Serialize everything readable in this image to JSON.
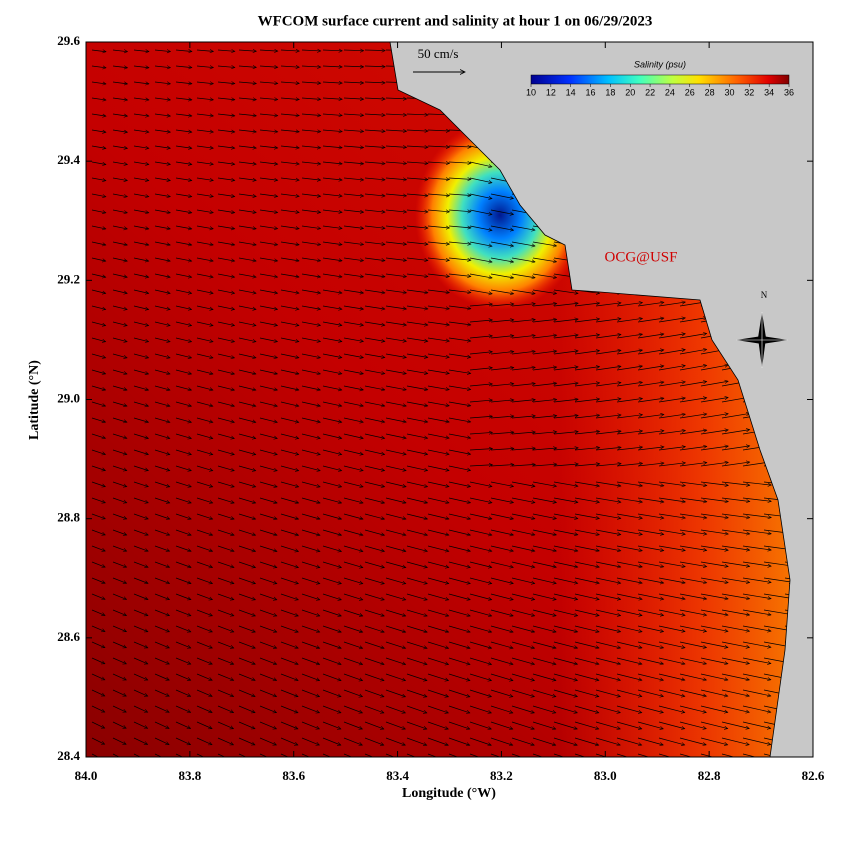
{
  "chart_data": {
    "type": "vector-field",
    "title": "WFCOM surface current and salinity at hour 1 on 06/29/2023",
    "x_label": "Longitude (°W)",
    "y_label": "Latitude (°N)",
    "xlim": [
      84.0,
      82.6
    ],
    "ylim": [
      28.4,
      29.6
    ],
    "xticks": [
      {
        "value": 84,
        "label": "84.0"
      },
      {
        "value": 83.8,
        "label": "83.8"
      },
      {
        "value": 83.6,
        "label": "83.6"
      },
      {
        "value": 83.4,
        "label": "83.4"
      },
      {
        "value": 83.2,
        "label": "83.2"
      },
      {
        "value": 83,
        "label": "83.0"
      },
      {
        "value": 82.8,
        "label": "82.8"
      },
      {
        "value": 82.6,
        "label": "82.6"
      }
    ],
    "yticks": [
      28.4,
      28.6,
      28.8,
      {
        "value": 29,
        "label": "29.0"
      },
      29.2,
      29.4,
      29.6
    ],
    "colorbar": {
      "label": "Salinity (psu)",
      "lim": [
        10,
        36
      ],
      "ticks": [
        10,
        12,
        14,
        16,
        18,
        20,
        22,
        24,
        26,
        28,
        30,
        32,
        34,
        36
      ]
    },
    "scale_label": "50 cm/s",
    "credit": "OCG@USF",
    "compass_label": "N"
  }
}
